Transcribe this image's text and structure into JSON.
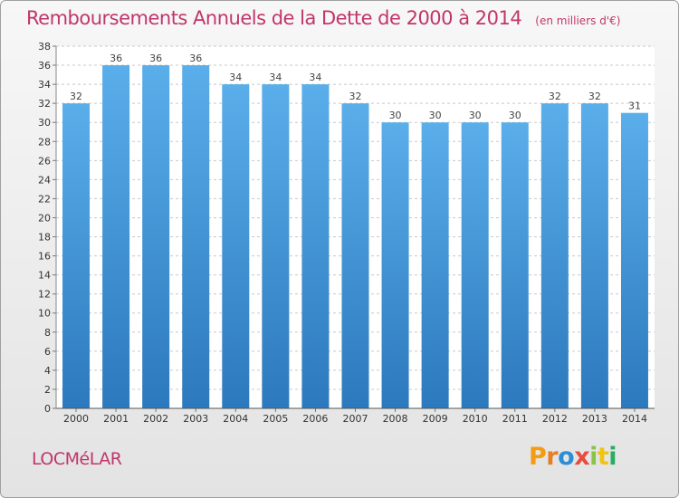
{
  "header": {
    "title": "Remboursements Annuels de la Dette de 2000 à 2014",
    "subtitle": "(en milliers d'€)"
  },
  "footer": {
    "commune": "LOCMéLAR",
    "logo": "Proxiti"
  },
  "colors": {
    "title": "#c0366a",
    "bar_top": "#5aaeea",
    "bar_bottom": "#2c79bd",
    "grid": "#c8c8c8"
  },
  "chart_data": {
    "type": "bar",
    "categories": [
      "2000",
      "2001",
      "2002",
      "2003",
      "2004",
      "2005",
      "2006",
      "2007",
      "2008",
      "2009",
      "2010",
      "2011",
      "2012",
      "2013",
      "2014"
    ],
    "values": [
      32,
      36,
      36,
      36,
      34,
      34,
      34,
      32,
      30,
      30,
      30,
      30,
      32,
      32,
      31
    ],
    "title": "Remboursements Annuels de la Dette de 2000 à 2014",
    "subtitle": "(en milliers d'€)",
    "ylim": [
      0,
      38
    ],
    "ytick_step": 2,
    "grid": true,
    "legend": "none"
  }
}
